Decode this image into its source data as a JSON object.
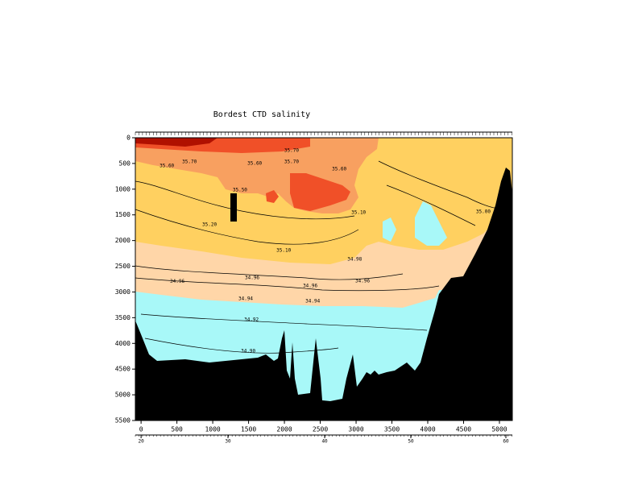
{
  "chart_data": {
    "type": "contour",
    "title": "Bordest CTD salinity",
    "xlim": [
      -80,
      5180
    ],
    "ylim": [
      0,
      5500
    ],
    "xticks": [
      0,
      500,
      1000,
      1500,
      2000,
      2500,
      3000,
      3500,
      4000,
      4500,
      5000
    ],
    "yticks": [
      0,
      500,
      1000,
      1500,
      2000,
      2500,
      3000,
      3500,
      4000,
      4500,
      5000,
      5500
    ],
    "x2ticks": [
      {
        "value": 0,
        "label": "20"
      },
      {
        "value": 1213,
        "label": "30"
      },
      {
        "value": 2562,
        "label": "40"
      },
      {
        "value": 3764,
        "label": "50"
      },
      {
        "value": 5090,
        "label": "60"
      }
    ],
    "annotations": [
      {
        "text": "35.70",
        "x": 2100,
        "y": 250
      },
      {
        "text": "35.60",
        "x": 360,
        "y": 550
      },
      {
        "text": "35.70",
        "x": 675,
        "y": 470
      },
      {
        "text": "35.60",
        "x": 1585,
        "y": 500
      },
      {
        "text": "35.70",
        "x": 2100,
        "y": 470
      },
      {
        "text": "35.60",
        "x": 2765,
        "y": 610
      },
      {
        "text": "35.50",
        "x": 1380,
        "y": 1020
      },
      {
        "text": "35.20",
        "x": 955,
        "y": 1690
      },
      {
        "text": "35.10",
        "x": 1990,
        "y": 2190
      },
      {
        "text": "35.10",
        "x": 3035,
        "y": 1460
      },
      {
        "text": "35.00",
        "x": 4775,
        "y": 1440
      },
      {
        "text": "34.98",
        "x": 2980,
        "y": 2370
      },
      {
        "text": "34.96",
        "x": 505,
        "y": 2800
      },
      {
        "text": "34.96",
        "x": 1550,
        "y": 2730
      },
      {
        "text": "34.96",
        "x": 2360,
        "y": 2880
      },
      {
        "text": "34.96",
        "x": 3090,
        "y": 2790
      },
      {
        "text": "34.94",
        "x": 1460,
        "y": 3130
      },
      {
        "text": "34.94",
        "x": 2395,
        "y": 3180
      },
      {
        "text": "34.92",
        "x": 1540,
        "y": 3540
      },
      {
        "text": "34.90",
        "x": 1495,
        "y": 4150
      }
    ]
  }
}
